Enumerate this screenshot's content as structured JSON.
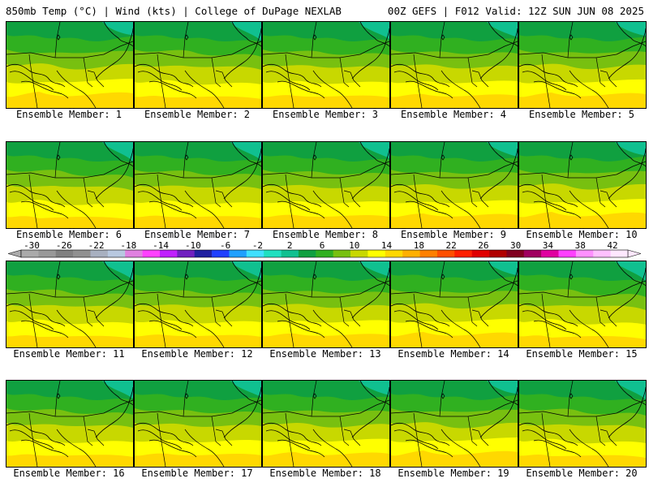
{
  "header": {
    "left": "850mb Temp (°C) | Wind (kts) | College of DuPage NEXLAB",
    "right": "00Z GEFS | F012 Valid: 12Z SUN JUN 08 2025"
  },
  "members": [
    "Ensemble Member: 1",
    "Ensemble Member: 2",
    "Ensemble Member: 3",
    "Ensemble Member: 4",
    "Ensemble Member: 5",
    "Ensemble Member: 6",
    "Ensemble Member: 7",
    "Ensemble Member: 8",
    "Ensemble Member: 9",
    "Ensemble Member: 10",
    "Ensemble Member: 11",
    "Ensemble Member: 12",
    "Ensemble Member: 13",
    "Ensemble Member: 14",
    "Ensemble Member: 15",
    "Ensemble Member: 16",
    "Ensemble Member: 17",
    "Ensemble Member: 18",
    "Ensemble Member: 19",
    "Ensemble Member: 20"
  ],
  "colorbar": {
    "ticks": [
      "-30",
      "-26",
      "-22",
      "-18",
      "-14",
      "-10",
      "-6",
      "-2",
      "2",
      "6",
      "10",
      "14",
      "18",
      "22",
      "26",
      "30",
      "34",
      "38",
      "42"
    ],
    "colors": [
      "#aaaaaa",
      "#999999",
      "#808080",
      "#909090",
      "#a8b0c0",
      "#b8c8e0",
      "#e080e0",
      "#ff40ff",
      "#c020ff",
      "#7020c0",
      "#2020a0",
      "#2040ff",
      "#20a0ff",
      "#40e0ff",
      "#20e0c0",
      "#10c090",
      "#10a040",
      "#30b020",
      "#78c010",
      "#c8d800",
      "#ffff00",
      "#ffd800",
      "#ffb000",
      "#ff8000",
      "#ff5000",
      "#ff2000",
      "#e00000",
      "#b00000",
      "#800020",
      "#a00060",
      "#e000a0",
      "#ff40ff",
      "#ff90ff",
      "#ffc0ff",
      "#ffe8ff"
    ]
  }
}
